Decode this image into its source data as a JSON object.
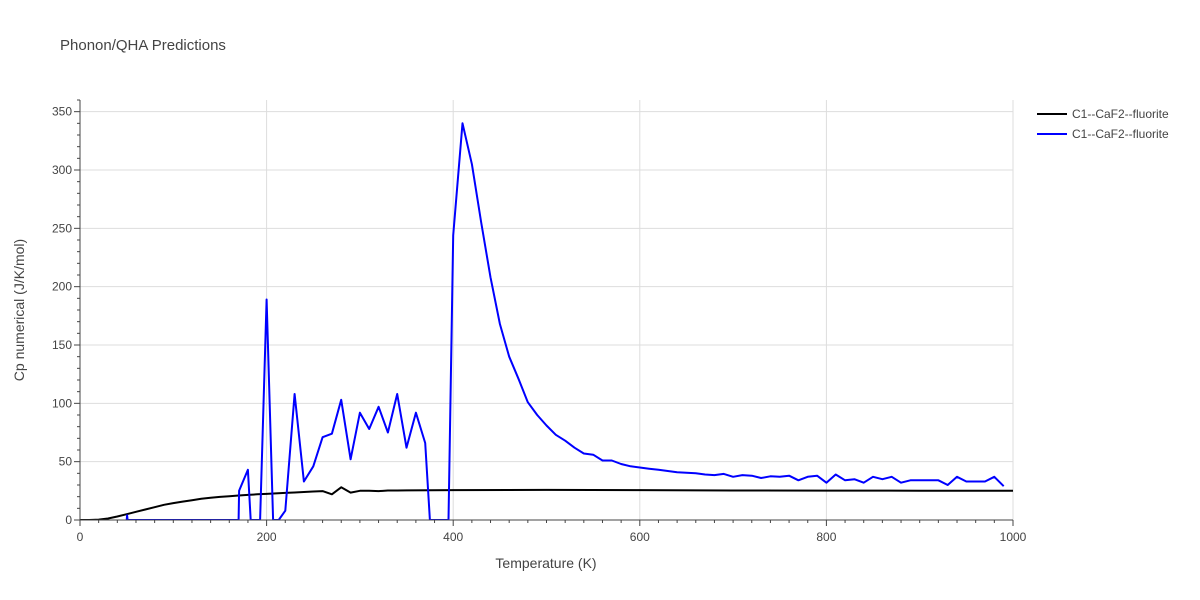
{
  "chart_data": {
    "type": "line",
    "title": "Phonon/QHA Predictions",
    "xlabel": "Temperature (K)",
    "ylabel": "Cp numerical (J/K/mol)",
    "xlim": [
      0,
      1000
    ],
    "ylim": [
      0,
      360
    ],
    "xticks": [
      0,
      200,
      400,
      600,
      800,
      1000
    ],
    "yticks": [
      0,
      50,
      100,
      150,
      200,
      250,
      300,
      350
    ],
    "grid": true,
    "legend_position": "top-right",
    "series": [
      {
        "name": "C1--CaF2--fluorite",
        "color": "#000000",
        "x": [
          0,
          10,
          20,
          30,
          40,
          50,
          60,
          70,
          80,
          90,
          100,
          110,
          120,
          130,
          140,
          150,
          160,
          170,
          180,
          190,
          200,
          210,
          220,
          230,
          240,
          250,
          260,
          270,
          280,
          290,
          300,
          310,
          320,
          330,
          340,
          350,
          400,
          500,
          600,
          700,
          800,
          900,
          1000
        ],
        "y": [
          0,
          0,
          0.3,
          1.3,
          3,
          5,
          7,
          9,
          11,
          13,
          14.5,
          15.8,
          17,
          18.2,
          19,
          19.8,
          20.4,
          21,
          21.5,
          22,
          22.4,
          22.8,
          23.2,
          23.6,
          24,
          24.4,
          24.8,
          22,
          28,
          23.5,
          25,
          25,
          24.8,
          25.3,
          25.3,
          25.4,
          25.6,
          25.8,
          25.6,
          25.3,
          25.2,
          25.1,
          25.1
        ]
      },
      {
        "name": "C1--CaF2--fluorite",
        "color": "#0000ff",
        "x": [
          50,
          50.5,
          51,
          170,
          170.5,
          180,
          183,
          193,
          200,
          207,
          213,
          220,
          230,
          240,
          250,
          260,
          270,
          280,
          290,
          300,
          310,
          320,
          330,
          340,
          350,
          360,
          370,
          375,
          395,
          400,
          410,
          420,
          430,
          440,
          450,
          460,
          470,
          480,
          490,
          500,
          510,
          520,
          530,
          540,
          550,
          560,
          570,
          580,
          590,
          600,
          610,
          620,
          630,
          640,
          650,
          660,
          670,
          680,
          690,
          700,
          710,
          720,
          730,
          740,
          750,
          760,
          770,
          780,
          790,
          800,
          810,
          820,
          830,
          840,
          850,
          860,
          870,
          880,
          890,
          900,
          910,
          920,
          930,
          940,
          950,
          960,
          970,
          980,
          990
        ],
        "y": [
          0,
          4,
          0,
          0,
          25,
          43,
          0,
          0,
          189,
          0,
          0,
          8,
          108,
          33,
          46,
          71,
          74,
          103,
          52,
          92,
          78,
          97,
          75,
          108,
          62,
          92,
          66,
          0,
          0,
          244,
          340,
          305,
          255,
          208,
          168,
          140,
          121,
          101,
          90,
          81,
          73,
          68,
          62,
          57,
          56,
          51,
          51,
          48,
          46,
          45,
          44,
          43,
          42,
          41,
          40.5,
          40,
          39,
          38.5,
          39.5,
          37,
          38.5,
          38,
          36,
          37.5,
          37,
          38,
          34,
          37,
          38,
          32,
          39,
          34,
          35,
          32,
          37,
          35,
          37,
          32,
          34,
          34,
          34,
          34,
          30,
          37,
          33,
          33,
          33,
          37,
          29
        ]
      }
    ]
  }
}
